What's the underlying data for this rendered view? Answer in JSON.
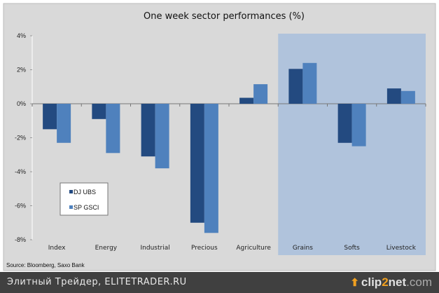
{
  "chart_data": {
    "type": "bar",
    "title": "One week sector performances (%)",
    "xlabel": "",
    "ylabel": "",
    "ylim": [
      -8,
      4
    ],
    "yticks": [
      4,
      2,
      0,
      -2,
      -4,
      -6,
      -8
    ],
    "ytick_labels": [
      "4%",
      "2%",
      "0%",
      "-2%",
      "-4%",
      "-6%",
      "-8%"
    ],
    "categories": [
      "Index",
      "Energy",
      "Industrial",
      "Precious",
      "Agriculture",
      "Grains",
      "Softs",
      "Livestock"
    ],
    "series": [
      {
        "name": "DJ UBS",
        "color": "#234a80",
        "values": [
          -1.5,
          -0.9,
          -3.1,
          -7.0,
          0.35,
          2.05,
          -2.3,
          0.9
        ]
      },
      {
        "name": "SP GSCI",
        "color": "#4f81bd",
        "values": [
          -2.3,
          -2.9,
          -3.8,
          -7.6,
          1.15,
          2.4,
          -2.5,
          0.75
        ]
      }
    ],
    "highlight_categories": [
      "Grains",
      "Softs",
      "Livestock"
    ],
    "highlight_color": "#b0c3dc",
    "background_color": "#d9d9d9",
    "grid": false,
    "legend_position": "lower-left",
    "source": "Source: Bloomberg, Saxo Bank"
  },
  "footer": {
    "caption": "Элитный Трейдер, ELITETRADER.RU",
    "logo_part1": "clip",
    "logo_part2": "2",
    "logo_part3": "net",
    "logo_part4": ".com"
  }
}
